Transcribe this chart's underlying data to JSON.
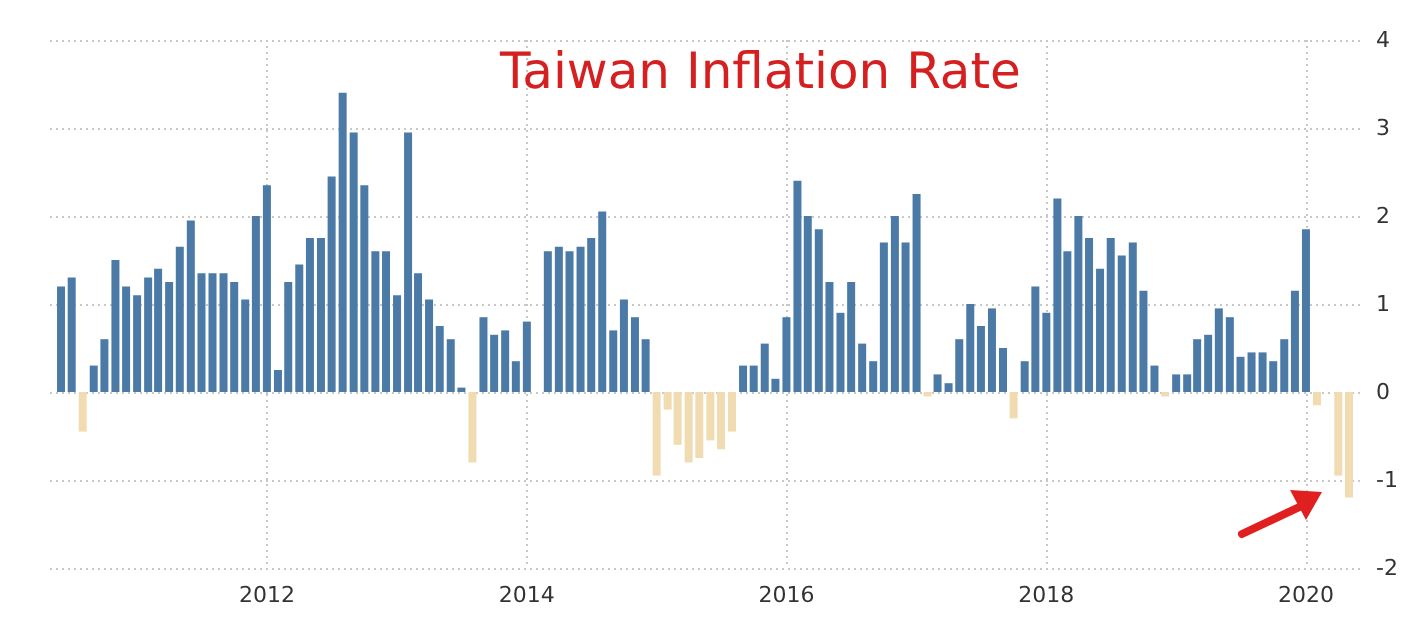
{
  "chart_data": {
    "type": "bar",
    "title": "Taiwan Inflation Rate",
    "x": [
      "2010-06",
      "2010-07",
      "2010-08",
      "2010-09",
      "2010-10",
      "2010-11",
      "2010-12",
      "2011-01",
      "2011-02",
      "2011-03",
      "2011-04",
      "2011-05",
      "2011-06",
      "2011-07",
      "2011-08",
      "2011-09",
      "2011-10",
      "2011-11",
      "2011-12",
      "2012-01",
      "2012-02",
      "2012-03",
      "2012-04",
      "2012-05",
      "2012-06",
      "2012-07",
      "2012-08",
      "2012-09",
      "2012-10",
      "2012-11",
      "2012-12",
      "2013-01",
      "2013-02",
      "2013-03",
      "2013-04",
      "2013-05",
      "2013-06",
      "2013-07",
      "2013-08",
      "2013-09",
      "2013-10",
      "2013-11",
      "2013-12",
      "2014-01",
      "2014-02",
      "2014-03",
      "2014-04",
      "2014-05",
      "2014-06",
      "2014-07",
      "2014-08",
      "2014-09",
      "2014-10",
      "2014-11",
      "2014-12",
      "2015-01",
      "2015-02",
      "2015-03",
      "2015-04",
      "2015-05",
      "2015-06",
      "2015-07",
      "2015-08",
      "2015-09",
      "2015-10",
      "2015-11",
      "2015-12",
      "2016-01",
      "2016-02",
      "2016-03",
      "2016-04",
      "2016-05",
      "2016-06",
      "2016-07",
      "2016-08",
      "2016-09",
      "2016-10",
      "2016-11",
      "2016-12",
      "2017-01",
      "2017-02",
      "2017-03",
      "2017-04",
      "2017-05",
      "2017-06",
      "2017-07",
      "2017-08",
      "2017-09",
      "2017-10",
      "2017-11",
      "2017-12",
      "2018-01",
      "2018-02",
      "2018-03",
      "2018-04",
      "2018-05",
      "2018-06",
      "2018-07",
      "2018-08",
      "2018-09",
      "2018-10",
      "2018-11",
      "2018-12",
      "2019-01",
      "2019-02",
      "2019-03",
      "2019-04",
      "2019-05",
      "2019-06",
      "2019-07",
      "2019-08",
      "2019-09",
      "2019-10",
      "2019-11",
      "2019-12",
      "2020-01",
      "2020-02",
      "2020-03",
      "2020-04",
      "2020-05"
    ],
    "values": [
      1.2,
      1.3,
      -0.45,
      0.3,
      0.6,
      1.5,
      1.2,
      1.1,
      1.3,
      1.4,
      1.25,
      1.65,
      1.95,
      1.35,
      1.35,
      1.35,
      1.25,
      1.05,
      2.0,
      2.35,
      0.25,
      1.25,
      1.45,
      1.75,
      1.75,
      2.45,
      3.4,
      2.95,
      2.35,
      1.6,
      1.6,
      1.1,
      2.95,
      1.35,
      1.05,
      0.75,
      0.6,
      0.05,
      -0.8,
      0.85,
      0.65,
      0.7,
      0.35,
      0.8,
      0,
      1.6,
      1.65,
      1.6,
      1.65,
      1.75,
      2.05,
      0.7,
      1.05,
      0.85,
      0.6,
      -0.95,
      -0.2,
      -0.6,
      -0.8,
      -0.75,
      -0.55,
      -0.65,
      -0.45,
      0.3,
      0.3,
      0.55,
      0.15,
      0.85,
      2.4,
      2.0,
      1.85,
      1.25,
      0.9,
      1.25,
      0.55,
      0.35,
      1.7,
      2.0,
      1.7,
      2.25,
      -0.05,
      0.2,
      0.1,
      0.6,
      1.0,
      0.75,
      0.95,
      0.5,
      -0.3,
      0.35,
      1.2,
      0.9,
      2.2,
      1.6,
      2.0,
      1.75,
      1.4,
      1.75,
      1.55,
      1.7,
      1.15,
      0.3,
      -0.05,
      0.2,
      0.2,
      0.6,
      0.65,
      0.95,
      0.85,
      0.4,
      0.45,
      0.45,
      0.35,
      0.6,
      1.15,
      1.85,
      -0.15,
      0,
      -0.95,
      -1.2
    ],
    "colors": [
      "#4a7aa5",
      "#4a7aa5",
      "#f0dcb0",
      "#4a7aa5",
      "#4a7aa5",
      "#4a7aa5",
      "#4a7aa5",
      "#4a7aa5",
      "#4a7aa5",
      "#4a7aa5",
      "#4a7aa5",
      "#4a7aa5",
      "#4a7aa5",
      "#4a7aa5",
      "#4a7aa5",
      "#4a7aa5",
      "#4a7aa5",
      "#4a7aa5",
      "#4a7aa5",
      "#4a7aa5",
      "#4a7aa5",
      "#4a7aa5",
      "#4a7aa5",
      "#4a7aa5",
      "#4a7aa5",
      "#4a7aa5",
      "#4a7aa5",
      "#4a7aa5",
      "#4a7aa5",
      "#4a7aa5",
      "#4a7aa5",
      "#4a7aa5",
      "#4a7aa5",
      "#4a7aa5",
      "#4a7aa5",
      "#4a7aa5",
      "#4a7aa5",
      "#4a7aa5",
      "#f0dcb0",
      "#4a7aa5",
      "#4a7aa5",
      "#4a7aa5",
      "#4a7aa5",
      "#4a7aa5",
      "#f0dcb0",
      "#4a7aa5",
      "#4a7aa5",
      "#4a7aa5",
      "#4a7aa5",
      "#4a7aa5",
      "#4a7aa5",
      "#4a7aa5",
      "#4a7aa5",
      "#4a7aa5",
      "#4a7aa5",
      "#f0dcb0",
      "#f0dcb0",
      "#f0dcb0",
      "#f0dcb0",
      "#f0dcb0",
      "#f0dcb0",
      "#f0dcb0",
      "#f0dcb0",
      "#4a7aa5",
      "#4a7aa5",
      "#4a7aa5",
      "#4a7aa5",
      "#4a7aa5",
      "#4a7aa5",
      "#4a7aa5",
      "#4a7aa5",
      "#4a7aa5",
      "#4a7aa5",
      "#4a7aa5",
      "#4a7aa5",
      "#4a7aa5",
      "#4a7aa5",
      "#4a7aa5",
      "#4a7aa5",
      "#4a7aa5",
      "#f0dcb0",
      "#4a7aa5",
      "#4a7aa5",
      "#4a7aa5",
      "#4a7aa5",
      "#4a7aa5",
      "#4a7aa5",
      "#4a7aa5",
      "#f0dcb0",
      "#4a7aa5",
      "#4a7aa5",
      "#4a7aa5",
      "#4a7aa5",
      "#4a7aa5",
      "#4a7aa5",
      "#4a7aa5",
      "#4a7aa5",
      "#4a7aa5",
      "#4a7aa5",
      "#4a7aa5",
      "#4a7aa5",
      "#4a7aa5",
      "#f0dcb0",
      "#4a7aa5",
      "#4a7aa5",
      "#4a7aa5",
      "#4a7aa5",
      "#4a7aa5",
      "#4a7aa5",
      "#4a7aa5",
      "#4a7aa5",
      "#4a7aa5",
      "#4a7aa5",
      "#4a7aa5",
      "#4a7aa5",
      "#4a7aa5",
      "#f0dcb0",
      "#f0dcb0",
      "#f0dcb0",
      "#f0dcb0"
    ],
    "xlim": [
      "2010-05",
      "2020-06"
    ],
    "xticks": [
      {
        "value": "2012",
        "label": "2012"
      },
      {
        "value": "2014",
        "label": "2014"
      },
      {
        "value": "2016",
        "label": "2016"
      },
      {
        "value": "2018",
        "label": "2018"
      },
      {
        "value": "2020",
        "label": "2020"
      }
    ],
    "ylim": [
      -2,
      4
    ],
    "yticks": [
      -2,
      -1,
      0,
      1,
      2,
      3,
      4
    ],
    "grid": true
  }
}
